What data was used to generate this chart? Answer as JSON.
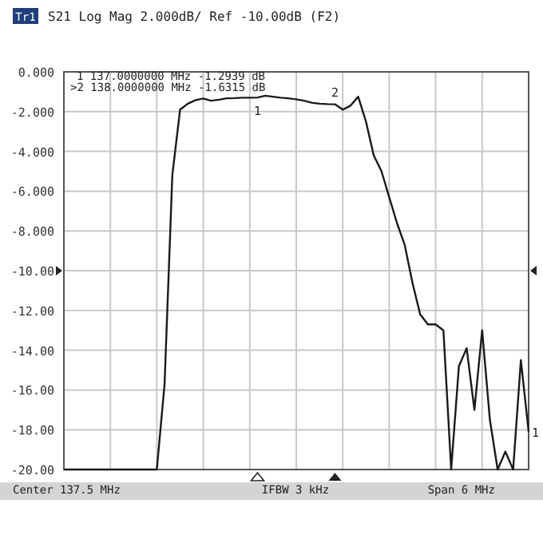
{
  "chart_data": {
    "type": "line",
    "title": "S21 Log Mag 2.000dB/ Ref -10.00dB (F2)",
    "categories": [
      null,
      null,
      null,
      null,
      null,
      null,
      null,
      null,
      null,
      null,
      null,
      null,
      null,
      null,
      null,
      null,
      null,
      null,
      null,
      null,
      null,
      null,
      null,
      null,
      null,
      null,
      null,
      null,
      null,
      null,
      null,
      null,
      null,
      null,
      null,
      null,
      null,
      null,
      null,
      null,
      null,
      null,
      null,
      null,
      null,
      null,
      null,
      null,
      null,
      null,
      null,
      null,
      null,
      null,
      null,
      null,
      null,
      null,
      null,
      null,
      null
    ],
    "series": [
      {
        "color": "#1a1a1a",
        "values": [
          -20,
          -20,
          -20,
          -20,
          -20,
          -20,
          -20,
          -20,
          -20,
          -20,
          -20,
          -20,
          -20,
          -15.7,
          -5.2,
          -1.9,
          -1.6,
          -1.42,
          -1.34,
          -1.45,
          -1.4,
          -1.33,
          -1.32,
          -1.3,
          -1.3,
          -1.29,
          -1.2,
          -1.25,
          -1.3,
          -1.33,
          -1.38,
          -1.45,
          -1.55,
          -1.6,
          -1.62,
          -1.63,
          -1.9,
          -1.7,
          -1.25,
          -2.5,
          -4.2,
          -5.0,
          -6.3,
          -7.6,
          -8.7,
          -10.6,
          -12.2,
          -12.7,
          -12.7,
          -13.0,
          -20,
          -14.8,
          -13.9,
          -17.0,
          -13.0,
          -17.5,
          -20,
          -19.1,
          -20,
          -14.5,
          -18.1
        ]
      }
    ],
    "ylim": [
      -20,
      0
    ],
    "yticks": [
      {
        "value": 0,
        "label": "0.000"
      },
      {
        "value": -2,
        "label": "-2.000"
      },
      {
        "value": -4,
        "label": "-4.000"
      },
      {
        "value": -6,
        "label": "-6.000"
      },
      {
        "value": -8,
        "label": "-8.000"
      },
      {
        "value": -10,
        "label": "-10.00"
      },
      {
        "value": -12,
        "label": "-12.00"
      },
      {
        "value": -14,
        "label": "-14.00"
      },
      {
        "value": -16,
        "label": "-16.00"
      },
      {
        "value": -18,
        "label": "-18.00"
      },
      {
        "value": -20,
        "label": "-20.00"
      }
    ],
    "grid": true,
    "marker": "none",
    "line_style": "solid",
    "annotations": [
      "Tr1",
      "1  137.0000000 MHz -1.2939 dB",
      ">2  138.0000000 MHz -1.6315 dB",
      "Center 137.5 MHz",
      "IFBW 3 kHz",
      "Span 6 MHz",
      "1",
      "2",
      "1"
    ]
  }
}
